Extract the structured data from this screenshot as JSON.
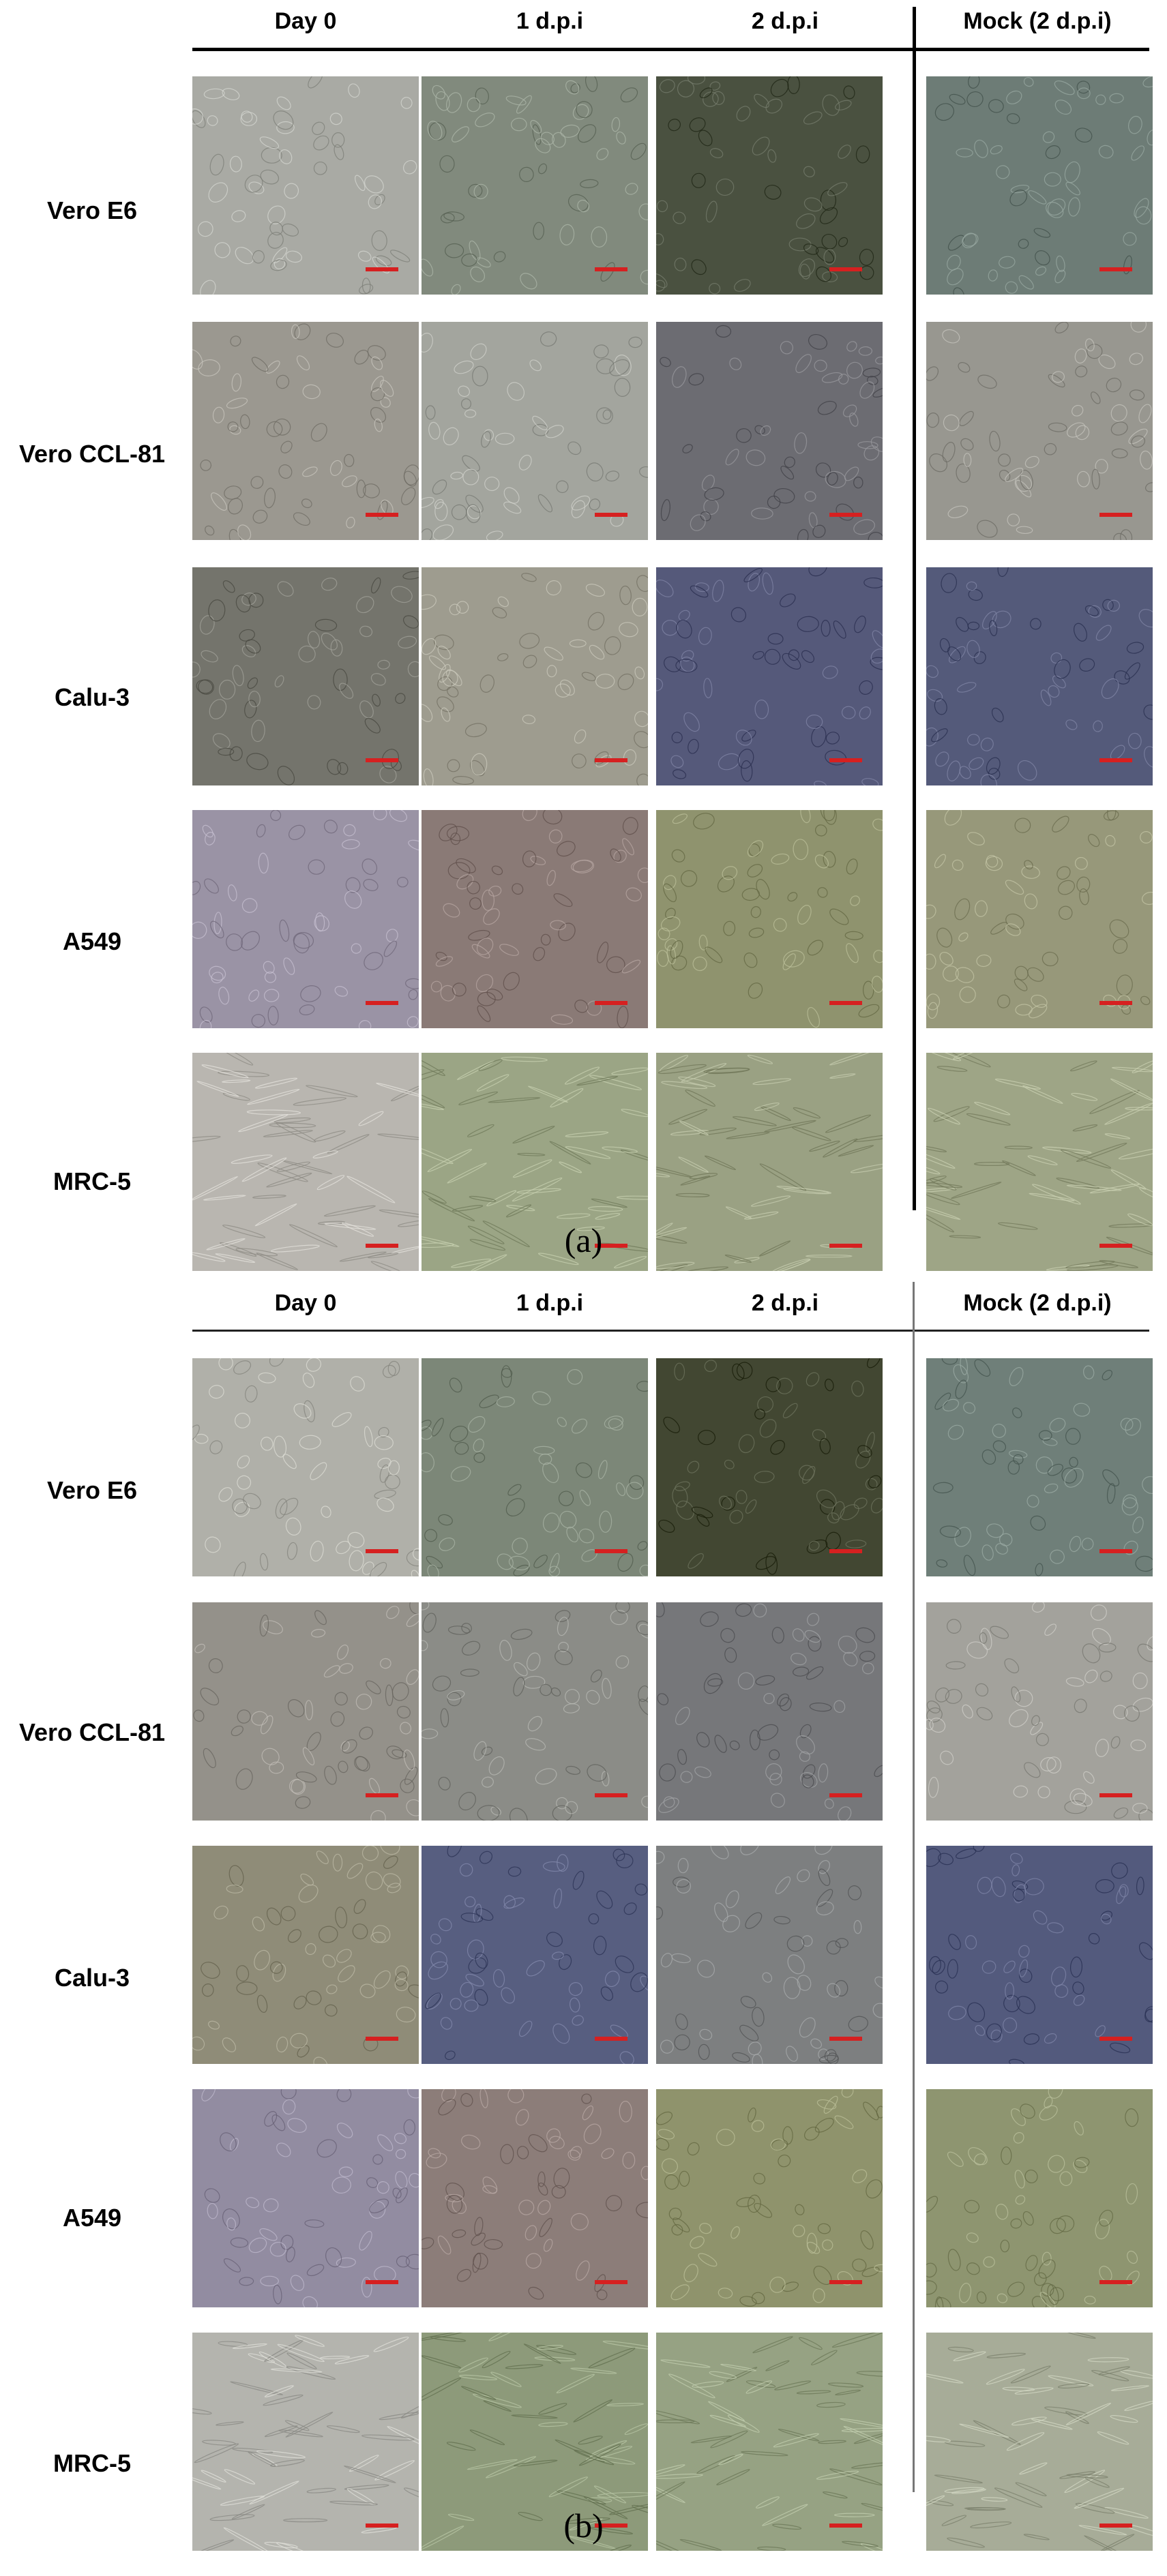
{
  "panel_a": {
    "columns": [
      "Day 0",
      "1 d.p.i",
      "2 d.p.i",
      "Mock (2 d.p.i)"
    ],
    "rows": [
      "Vero E6",
      "Vero CCL-81",
      "Calu-3",
      "A549",
      "MRC-5"
    ],
    "caption": "(a)",
    "tints": [
      [
        "#a9aaa4",
        "#818a7d",
        "#4a5140",
        "#6d7c76"
      ],
      [
        "#9b9890",
        "#a3a59e",
        "#6c6c72",
        "#989790"
      ],
      [
        "#74746c",
        "#9e9c8f",
        "#55597a",
        "#545a7a"
      ],
      [
        "#9a93a5",
        "#8a7a76",
        "#8f936e",
        "#97987a"
      ],
      [
        "#b9b6b0",
        "#9ba585",
        "#9aa183",
        "#9ea586"
      ]
    ]
  },
  "panel_b": {
    "columns": [
      "Day 0",
      "1 d.p.i",
      "2 d.p.i",
      "Mock (2 d.p.i)"
    ],
    "rows": [
      "Vero E6",
      "Vero CCL-81",
      "Calu-3",
      "A549",
      "MRC-5"
    ],
    "caption": "(b)",
    "tints": [
      [
        "#b0b0a9",
        "#7c8778",
        "#424732",
        "#6f7f79"
      ],
      [
        "#94918a",
        "#8b8c87",
        "#76777a",
        "#a3a29c"
      ],
      [
        "#8f8c78",
        "#575e80",
        "#7d7f80",
        "#535a7d"
      ],
      [
        "#928ca1",
        "#8c7d79",
        "#8f936c",
        "#8e9570"
      ],
      [
        "#b4b4ae",
        "#8d9a7a",
        "#96a283",
        "#a7ac98"
      ]
    ]
  },
  "icons": {
    "scale_bar_color": "#d62020"
  }
}
